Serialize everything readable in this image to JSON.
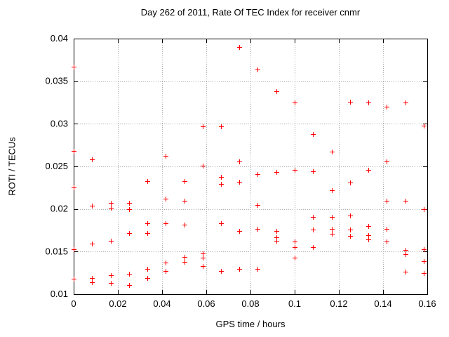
{
  "chart": {
    "title": "Day 262 of 2011, Rate Of TEC Index for receiver cnmr",
    "xlabel": "GPS time / hours",
    "ylabel": "ROTI / TECUs"
  },
  "chart_data": {
    "type": "scatter",
    "title": "Day 262 of 2011, Rate Of TEC Index for receiver cnmr",
    "xlabel": "GPS time / hours",
    "ylabel": "ROTI / TECUs",
    "xlim": [
      0,
      0.16
    ],
    "ylim": [
      0.01,
      0.04
    ],
    "xticks": [
      0,
      0.02,
      0.04,
      0.06,
      0.08,
      0.1,
      0.12,
      0.14,
      0.16
    ],
    "xtick_labels": [
      "0",
      "0.02",
      "0.04",
      "0.06",
      "0.08",
      "0.1",
      "0.12",
      "0.14",
      "0.16"
    ],
    "yticks": [
      0.01,
      0.015,
      0.02,
      0.025,
      0.03,
      0.035,
      0.04
    ],
    "ytick_labels": [
      "0.01",
      "0.015",
      "0.02",
      "0.025",
      "0.03",
      "0.035",
      "0.04"
    ],
    "grid": true,
    "legend": "none",
    "marker": "plus",
    "marker_color": "#ff0000",
    "grid_color": "#aaaaaa",
    "axis_color": "#000000",
    "series": [
      {
        "name": "ROTI",
        "points": [
          [
            0,
            0.0367
          ],
          [
            0,
            0.0268
          ],
          [
            0,
            0.0225
          ],
          [
            0,
            0.0153
          ],
          [
            0,
            0.0118
          ],
          [
            0.0083,
            0.0258
          ],
          [
            0.0083,
            0.0204
          ],
          [
            0.0083,
            0.0159
          ],
          [
            0.0083,
            0.0119
          ],
          [
            0.0083,
            0.0114
          ],
          [
            0.0167,
            0.0207
          ],
          [
            0.0167,
            0.0201
          ],
          [
            0.0167,
            0.0163
          ],
          [
            0.0167,
            0.0122
          ],
          [
            0.0167,
            0.0113
          ],
          [
            0.025,
            0.0207
          ],
          [
            0.025,
            0.02
          ],
          [
            0.025,
            0.0172
          ],
          [
            0.025,
            0.0124
          ],
          [
            0.025,
            0.0111
          ],
          [
            0.0333,
            0.0233
          ],
          [
            0.0333,
            0.0183
          ],
          [
            0.0333,
            0.0172
          ],
          [
            0.0333,
            0.013
          ],
          [
            0.0333,
            0.0119
          ],
          [
            0.0417,
            0.0262
          ],
          [
            0.0417,
            0.0212
          ],
          [
            0.0417,
            0.0183
          ],
          [
            0.0417,
            0.0137
          ],
          [
            0.0417,
            0.0127
          ],
          [
            0.05,
            0.0233
          ],
          [
            0.05,
            0.021
          ],
          [
            0.05,
            0.0182
          ],
          [
            0.05,
            0.0144
          ],
          [
            0.05,
            0.0138
          ],
          [
            0.0583,
            0.0297
          ],
          [
            0.0583,
            0.0251
          ],
          [
            0.0583,
            0.0148
          ],
          [
            0.0583,
            0.0143
          ],
          [
            0.0583,
            0.0133
          ],
          [
            0.0667,
            0.0297
          ],
          [
            0.0667,
            0.0238
          ],
          [
            0.0667,
            0.0229
          ],
          [
            0.0667,
            0.0183
          ],
          [
            0.0667,
            0.0127
          ],
          [
            0.075,
            0.039
          ],
          [
            0.075,
            0.0256
          ],
          [
            0.075,
            0.0232
          ],
          [
            0.075,
            0.0174
          ],
          [
            0.075,
            0.013
          ],
          [
            0.0833,
            0.0364
          ],
          [
            0.0833,
            0.0241
          ],
          [
            0.0833,
            0.0205
          ],
          [
            0.0833,
            0.0177
          ],
          [
            0.0833,
            0.013
          ],
          [
            0.0917,
            0.0338
          ],
          [
            0.0917,
            0.0243
          ],
          [
            0.0917,
            0.0174
          ],
          [
            0.0917,
            0.0167
          ],
          [
            0.0917,
            0.0163
          ],
          [
            0.1,
            0.0325
          ],
          [
            0.1,
            0.0246
          ],
          [
            0.1,
            0.0162
          ],
          [
            0.1,
            0.0155
          ],
          [
            0.1,
            0.0143
          ],
          [
            0.1083,
            0.0288
          ],
          [
            0.1083,
            0.0244
          ],
          [
            0.1083,
            0.0191
          ],
          [
            0.1083,
            0.0176
          ],
          [
            0.1083,
            0.0155
          ],
          [
            0.1167,
            0.0267
          ],
          [
            0.1167,
            0.0222
          ],
          [
            0.1167,
            0.0191
          ],
          [
            0.1167,
            0.0177
          ],
          [
            0.1167,
            0.0171
          ],
          [
            0.125,
            0.0326
          ],
          [
            0.125,
            0.0231
          ],
          [
            0.125,
            0.0192
          ],
          [
            0.125,
            0.0176
          ],
          [
            0.125,
            0.0168
          ],
          [
            0.1333,
            0.0325
          ],
          [
            0.1333,
            0.0246
          ],
          [
            0.1333,
            0.018
          ],
          [
            0.1333,
            0.0169
          ],
          [
            0.1333,
            0.0164
          ],
          [
            0.1417,
            0.032
          ],
          [
            0.1417,
            0.0256
          ],
          [
            0.1417,
            0.021
          ],
          [
            0.1417,
            0.0177
          ],
          [
            0.1417,
            0.0162
          ],
          [
            0.15,
            0.0325
          ],
          [
            0.15,
            0.021
          ],
          [
            0.15,
            0.0152
          ],
          [
            0.15,
            0.0147
          ],
          [
            0.15,
            0.0126
          ],
          [
            0.1583,
            0.0298
          ],
          [
            0.1583,
            0.02
          ],
          [
            0.1583,
            0.0153
          ],
          [
            0.1583,
            0.0139
          ],
          [
            0.1583,
            0.0125
          ]
        ]
      }
    ]
  }
}
